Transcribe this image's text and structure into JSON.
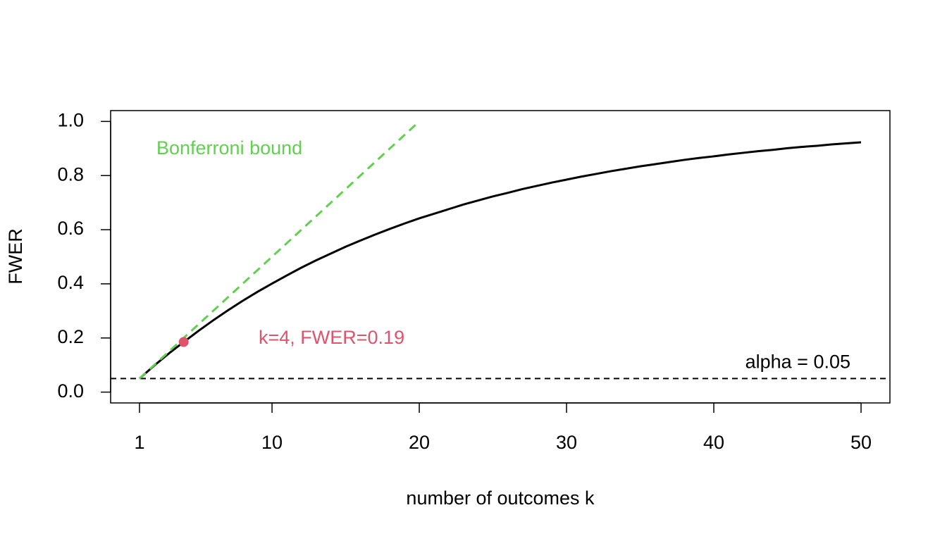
{
  "chart_data": {
    "type": "line",
    "xlabel": "number of outcomes k",
    "ylabel": "FWER",
    "xlim": [
      -0.96,
      51.96
    ],
    "ylim": [
      -0.04,
      1.04
    ],
    "xticks": [
      1,
      10,
      20,
      30,
      40,
      50
    ],
    "yticks": [
      {
        "value": 0,
        "label": "0.0"
      },
      0.2,
      0.4,
      0.6,
      0.8,
      {
        "value": 1,
        "label": "1.0"
      }
    ],
    "x": [
      1,
      2,
      3,
      4,
      5,
      6,
      7,
      8,
      9,
      10,
      11,
      12,
      13,
      14,
      15,
      16,
      17,
      18,
      19,
      20,
      21,
      22,
      23,
      24,
      25,
      26,
      27,
      28,
      29,
      30,
      31,
      32,
      33,
      34,
      35,
      36,
      37,
      38,
      39,
      40,
      41,
      42,
      43,
      44,
      45,
      46,
      47,
      48,
      49,
      50
    ],
    "series": [
      {
        "color": "#000000",
        "values": [
          0.05,
          0.098,
          0.143,
          0.185,
          0.226,
          0.265,
          0.302,
          0.337,
          0.37,
          0.401,
          0.431,
          0.46,
          0.487,
          0.512,
          0.537,
          0.56,
          0.582,
          0.603,
          0.623,
          0.642,
          0.659,
          0.676,
          0.693,
          0.708,
          0.723,
          0.736,
          0.75,
          0.762,
          0.774,
          0.785,
          0.796,
          0.806,
          0.816,
          0.825,
          0.834,
          0.842,
          0.85,
          0.858,
          0.865,
          0.871,
          0.878,
          0.884,
          0.89,
          0.895,
          0.901,
          0.906,
          0.91,
          0.915,
          0.919,
          0.923
        ]
      },
      {
        "name": "Bonferroni bound",
        "color": "#61d04f",
        "dashed": true,
        "x": [
          1,
          20
        ],
        "values": [
          0.05,
          1.0
        ]
      }
    ],
    "hline": {
      "name": "alpha = 0.05",
      "value": 0.05,
      "color": "#000000",
      "dashed": true
    },
    "point": {
      "label": "k=4, FWER=0.19",
      "x": 4,
      "y": 0.185,
      "color": "#df536b"
    }
  }
}
